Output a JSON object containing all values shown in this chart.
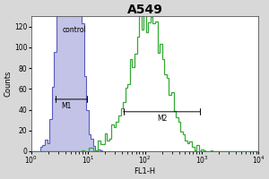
{
  "title": "A549",
  "xlabel": "FL1-H",
  "ylabel": "Counts",
  "title_fontsize": 10,
  "label_fontsize": 6,
  "tick_fontsize": 5.5,
  "control_label": "control",
  "m1_label": "M1",
  "m2_label": "M2",
  "ylim": [
    0,
    130
  ],
  "yticks": [
    0,
    20,
    40,
    60,
    80,
    100,
    120
  ],
  "control_color": "#2222aa",
  "control_fill": "#aaaadd",
  "sample_color": "#33aa33",
  "background_color": "#d8d8d8",
  "plot_bg": "#ffffff",
  "ctrl_mean": 0.68,
  "ctrl_sigma": 0.15,
  "samp_mean": 2.05,
  "samp_sigma": 0.32,
  "ctrl_scale": 3500,
  "samp_scale": 2500,
  "n_bins": 100
}
